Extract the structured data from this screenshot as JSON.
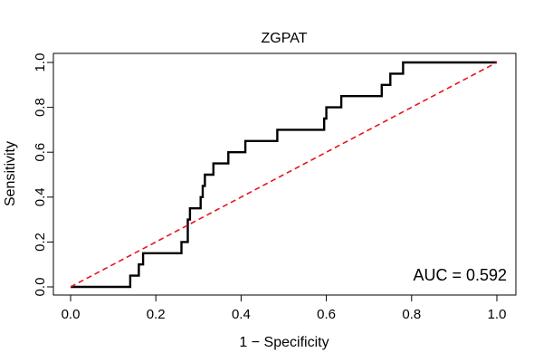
{
  "chart_data": {
    "type": "line",
    "title": "ZGPAT",
    "xlabel": "1 − Specificity",
    "ylabel": "Sensitivity",
    "xlim": [
      0,
      1
    ],
    "ylim": [
      0,
      1
    ],
    "xticks": [
      "0.0",
      "0.2",
      "0.4",
      "0.6",
      "0.8",
      "1.0"
    ],
    "yticks": [
      "0.0",
      "0.2",
      "0.4",
      "0.6",
      "0.8",
      "1.0"
    ],
    "annotation": "AUC = 0.592",
    "colors": {
      "roc": "#000000",
      "reference": "#e8141b",
      "frame": "#000000"
    },
    "series": [
      {
        "name": "ROC curve",
        "style": "step",
        "x": [
          0.0,
          0.14,
          0.14,
          0.16,
          0.16,
          0.17,
          0.17,
          0.26,
          0.26,
          0.275,
          0.275,
          0.28,
          0.28,
          0.305,
          0.305,
          0.31,
          0.31,
          0.315,
          0.315,
          0.335,
          0.335,
          0.37,
          0.37,
          0.41,
          0.41,
          0.485,
          0.485,
          0.595,
          0.595,
          0.6,
          0.6,
          0.635,
          0.635,
          0.73,
          0.73,
          0.75,
          0.75,
          0.78,
          0.78,
          1.0
        ],
        "y": [
          0.0,
          0.0,
          0.05,
          0.05,
          0.1,
          0.1,
          0.15,
          0.15,
          0.2,
          0.2,
          0.3,
          0.3,
          0.35,
          0.35,
          0.4,
          0.4,
          0.45,
          0.45,
          0.5,
          0.5,
          0.55,
          0.55,
          0.6,
          0.6,
          0.65,
          0.65,
          0.7,
          0.7,
          0.75,
          0.75,
          0.8,
          0.8,
          0.85,
          0.85,
          0.9,
          0.9,
          0.95,
          0.95,
          1.0,
          1.0
        ]
      },
      {
        "name": "Reference (chance)",
        "style": "dashed",
        "x": [
          0,
          1
        ],
        "y": [
          0,
          1
        ]
      }
    ]
  }
}
